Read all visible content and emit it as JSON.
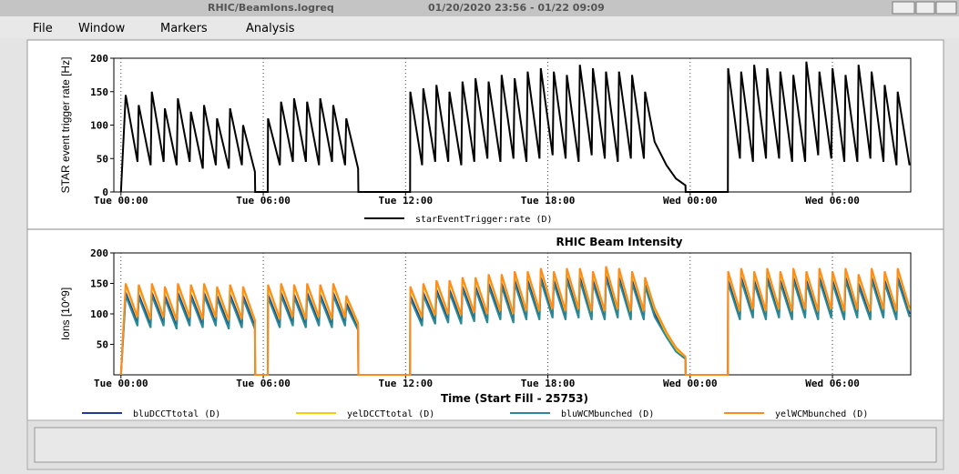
{
  "window": {
    "title": "RHIC/BeamIons.logreq",
    "time_range": "01/20/2020 23:56 - 01/22 09:09"
  },
  "menu": [
    "File",
    "Window",
    "Markers",
    "Analysis"
  ],
  "chart_data": [
    {
      "type": "line",
      "ylabel": "STAR event trigger rate [Hz]",
      "grid": true,
      "xlim": [
        -0.3,
        33.3
      ],
      "ylim": [
        0,
        200
      ],
      "xticks": [
        {
          "value": 0,
          "label": "Tue 00:00"
        },
        {
          "value": 6,
          "label": "Tue 06:00"
        },
        {
          "value": 12,
          "label": "Tue 12:00"
        },
        {
          "value": 18,
          "label": "Tue 18:00"
        },
        {
          "value": 24,
          "label": "Wed 00:00"
        },
        {
          "value": 30,
          "label": "Wed 06:00"
        }
      ],
      "yticks": [
        0,
        50,
        100,
        150,
        200
      ],
      "x": [
        0,
        0.2,
        0.7,
        0.75,
        1.25,
        1.3,
        1.8,
        1.85,
        2.35,
        2.4,
        2.9,
        2.95,
        3.45,
        3.5,
        4.0,
        4.05,
        4.55,
        4.6,
        5.1,
        5.15,
        5.65,
        5.66,
        6.19,
        6.2,
        6.7,
        6.75,
        7.25,
        7.3,
        7.8,
        7.85,
        8.35,
        8.4,
        8.9,
        8.95,
        9.45,
        9.5,
        10.0,
        10.01,
        12.19,
        12.2,
        12.7,
        12.75,
        13.25,
        13.3,
        13.8,
        13.85,
        14.35,
        14.4,
        14.9,
        14.95,
        15.45,
        15.5,
        16.0,
        16.05,
        16.55,
        16.6,
        17.1,
        17.15,
        17.65,
        17.7,
        18.2,
        18.25,
        18.75,
        18.8,
        19.3,
        19.35,
        19.85,
        19.9,
        20.4,
        20.45,
        20.95,
        21.0,
        21.5,
        21.55,
        22.05,
        22.1,
        22.5,
        23.0,
        23.4,
        23.8,
        23.81,
        25.59,
        25.6,
        26.1,
        26.15,
        26.65,
        26.7,
        27.2,
        27.25,
        27.75,
        27.8,
        28.3,
        28.35,
        28.85,
        28.9,
        29.4,
        29.45,
        29.95,
        30.0,
        30.5,
        30.55,
        31.05,
        31.1,
        31.6,
        31.65,
        32.15,
        32.2,
        32.7,
        32.75,
        33.25
      ],
      "series": [
        {
          "name": "starEventTrigger:rate (D)",
          "color": "#000000",
          "values": [
            0,
            145,
            45,
            130,
            40,
            150,
            45,
            125,
            40,
            140,
            45,
            120,
            35,
            130,
            40,
            110,
            35,
            125,
            40,
            100,
            30,
            0,
            0,
            110,
            40,
            135,
            45,
            140,
            45,
            135,
            40,
            140,
            45,
            130,
            40,
            110,
            35,
            0,
            0,
            150,
            40,
            155,
            45,
            160,
            45,
            150,
            40,
            165,
            45,
            170,
            50,
            165,
            45,
            175,
            50,
            170,
            45,
            180,
            50,
            185,
            55,
            180,
            50,
            175,
            45,
            190,
            55,
            185,
            50,
            180,
            45,
            180,
            50,
            175,
            50,
            150,
            75,
            40,
            20,
            10,
            0,
            0,
            185,
            50,
            180,
            45,
            190,
            50,
            185,
            50,
            180,
            45,
            175,
            45,
            195,
            55,
            180,
            50,
            185,
            45,
            175,
            45,
            190,
            50,
            180,
            45,
            160,
            40,
            150,
            40
          ]
        }
      ]
    },
    {
      "type": "line",
      "title": "RHIC Beam Intensity",
      "xlabel": "Time (Start Fill - 25753)",
      "ylabel": "Ions [10^9]",
      "grid": true,
      "xlim": [
        -0.3,
        33.3
      ],
      "ylim": [
        0,
        200
      ],
      "xticks": [
        {
          "value": 0,
          "label": "Tue 00:00"
        },
        {
          "value": 6,
          "label": "Tue 06:00"
        },
        {
          "value": 12,
          "label": "Tue 12:00"
        },
        {
          "value": 18,
          "label": "Tue 18:00"
        },
        {
          "value": 24,
          "label": "Wed 00:00"
        },
        {
          "value": 30,
          "label": "Wed 06:00"
        }
      ],
      "yticks": [
        50,
        100,
        150,
        200
      ],
      "x": [
        0,
        0.2,
        0.7,
        0.75,
        1.25,
        1.3,
        1.8,
        1.85,
        2.35,
        2.4,
        2.9,
        2.95,
        3.45,
        3.5,
        4.0,
        4.05,
        4.55,
        4.6,
        5.1,
        5.15,
        5.65,
        5.66,
        6.19,
        6.2,
        6.7,
        6.75,
        7.25,
        7.3,
        7.8,
        7.85,
        8.35,
        8.4,
        8.9,
        8.95,
        9.45,
        9.5,
        10.0,
        10.01,
        12.19,
        12.2,
        12.7,
        12.75,
        13.25,
        13.3,
        13.8,
        13.85,
        14.35,
        14.4,
        14.9,
        14.95,
        15.45,
        15.5,
        16.0,
        16.05,
        16.55,
        16.6,
        17.1,
        17.15,
        17.65,
        17.7,
        18.2,
        18.25,
        18.75,
        18.8,
        19.3,
        19.35,
        19.85,
        19.9,
        20.4,
        20.45,
        20.95,
        21.0,
        21.5,
        21.55,
        22.05,
        22.1,
        22.5,
        23.0,
        23.4,
        23.8,
        23.81,
        25.59,
        25.6,
        26.1,
        26.15,
        26.65,
        26.7,
        27.2,
        27.25,
        27.75,
        27.8,
        28.3,
        28.35,
        28.85,
        28.9,
        29.4,
        29.45,
        29.95,
        30.0,
        30.5,
        30.55,
        31.05,
        31.1,
        31.6,
        31.65,
        32.15,
        32.2,
        32.7,
        32.75,
        33.25
      ],
      "series": [
        {
          "name": "bluDCCTtotal (D)",
          "color": "#1e3aa0",
          "values": [
            0,
            135,
            85,
            132,
            82,
            135,
            85,
            130,
            80,
            135,
            85,
            132,
            82,
            135,
            85,
            130,
            80,
            132,
            82,
            130,
            80,
            0,
            0,
            132,
            82,
            135,
            85,
            132,
            82,
            135,
            85,
            132,
            82,
            135,
            85,
            118,
            78,
            0,
            0,
            130,
            85,
            135,
            88,
            140,
            90,
            140,
            88,
            145,
            92,
            145,
            90,
            150,
            95,
            150,
            90,
            155,
            95,
            155,
            95,
            160,
            98,
            155,
            95,
            160,
            98,
            160,
            95,
            155,
            95,
            163,
            98,
            160,
            95,
            155,
            95,
            150,
            100,
            65,
            40,
            28,
            0,
            0,
            155,
            95,
            160,
            98,
            155,
            95,
            160,
            98,
            155,
            95,
            160,
            98,
            155,
            95,
            160,
            98,
            155,
            95,
            160,
            98,
            150,
            95,
            160,
            98,
            155,
            95,
            160,
            100
          ]
        },
        {
          "name": "yelDCCTtotal (D)",
          "color": "#f2d000",
          "values": [
            0,
            147,
            92,
            145,
            89,
            147,
            92,
            142,
            87,
            147,
            92,
            145,
            89,
            147,
            92,
            142,
            87,
            145,
            89,
            142,
            87,
            0,
            0,
            145,
            89,
            147,
            92,
            145,
            89,
            147,
            92,
            145,
            89,
            147,
            92,
            127,
            82,
            0,
            0,
            142,
            92,
            147,
            95,
            152,
            97,
            152,
            95,
            157,
            99,
            157,
            97,
            162,
            102,
            162,
            97,
            167,
            102,
            167,
            102,
            172,
            105,
            167,
            102,
            172,
            105,
            172,
            102,
            167,
            102,
            175,
            105,
            172,
            102,
            167,
            102,
            157,
            107,
            67,
            42,
            27,
            0,
            0,
            167,
            102,
            172,
            105,
            167,
            102,
            172,
            105,
            167,
            102,
            172,
            105,
            167,
            102,
            172,
            105,
            167,
            102,
            172,
            105,
            162,
            102,
            172,
            105,
            167,
            102,
            172,
            107
          ]
        },
        {
          "name": "bluWCMbunched (D)",
          "color": "#2a8a96",
          "values": [
            0,
            130,
            80,
            127,
            77,
            130,
            80,
            125,
            75,
            130,
            80,
            127,
            77,
            130,
            80,
            125,
            75,
            127,
            77,
            125,
            75,
            0,
            0,
            127,
            77,
            130,
            80,
            127,
            77,
            130,
            80,
            127,
            77,
            130,
            80,
            113,
            73,
            0,
            0,
            125,
            80,
            130,
            83,
            135,
            85,
            135,
            83,
            140,
            87,
            140,
            85,
            145,
            90,
            145,
            85,
            150,
            90,
            150,
            90,
            155,
            93,
            150,
            90,
            155,
            93,
            155,
            90,
            150,
            90,
            158,
            93,
            155,
            90,
            150,
            90,
            145,
            95,
            62,
            38,
            26,
            0,
            0,
            150,
            90,
            155,
            93,
            150,
            90,
            155,
            93,
            150,
            90,
            155,
            93,
            150,
            90,
            155,
            93,
            150,
            90,
            155,
            93,
            145,
            90,
            155,
            93,
            150,
            90,
            155,
            95
          ]
        },
        {
          "name": "yelWCMbunched (D)",
          "color": "#ff8c1a",
          "values": [
            0,
            150,
            95,
            148,
            92,
            150,
            95,
            145,
            90,
            150,
            95,
            148,
            92,
            150,
            95,
            145,
            90,
            148,
            92,
            145,
            90,
            0,
            0,
            148,
            92,
            150,
            95,
            148,
            92,
            150,
            95,
            148,
            92,
            150,
            95,
            130,
            85,
            0,
            0,
            145,
            95,
            150,
            98,
            155,
            100,
            155,
            98,
            160,
            102,
            160,
            100,
            165,
            105,
            165,
            100,
            170,
            105,
            170,
            105,
            175,
            108,
            170,
            105,
            175,
            108,
            175,
            105,
            170,
            105,
            178,
            108,
            175,
            105,
            170,
            105,
            160,
            110,
            70,
            45,
            30,
            0,
            0,
            170,
            105,
            175,
            108,
            170,
            105,
            175,
            108,
            170,
            105,
            175,
            108,
            170,
            105,
            175,
            108,
            170,
            105,
            175,
            108,
            165,
            105,
            175,
            108,
            170,
            105,
            175,
            110
          ]
        }
      ]
    }
  ]
}
